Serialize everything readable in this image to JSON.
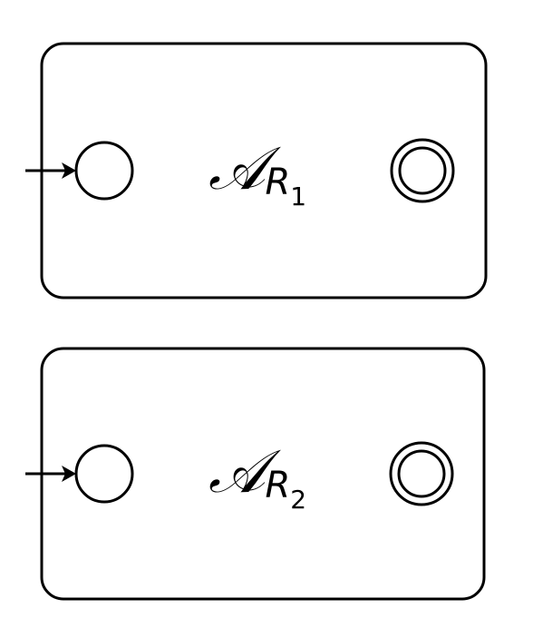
{
  "automata": [
    {
      "symbol": "𝒜",
      "subscript": "R",
      "subscript_index": "1"
    },
    {
      "symbol": "𝒜",
      "subscript": "R",
      "subscript_index": "2"
    }
  ],
  "colors": {
    "stroke": "#000000",
    "background": "#ffffff"
  }
}
